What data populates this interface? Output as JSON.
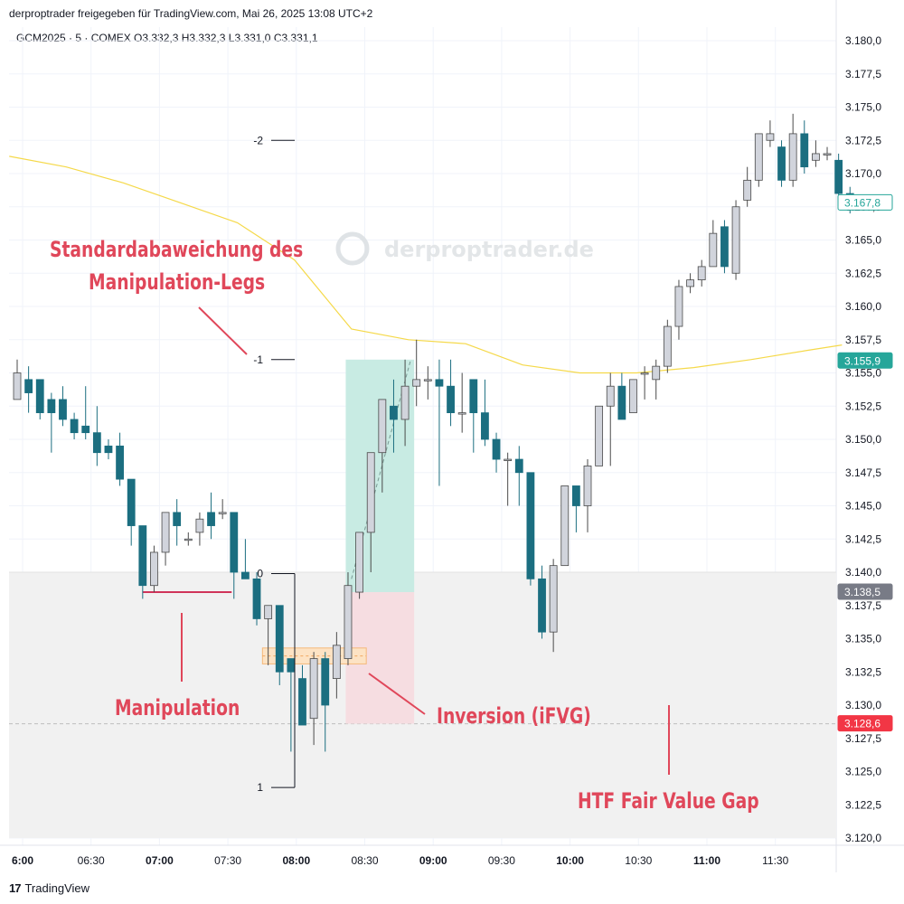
{
  "header": {
    "attribution": "derproptrader freigegeben für TradingView.com, Mai 26, 2025 13:08 UTC+2",
    "symbol_line": "GCM2025 · 5 · COMEX  O3.332,3  H3.332,3  L3.331,0  C3.331,1"
  },
  "footer": {
    "brand": "TradingView",
    "logo": "17"
  },
  "watermark": "derproptrader.de",
  "colors": {
    "bull": "#d1d4dc",
    "bear": "#1b6e80",
    "ma": "#f5d94a",
    "price_tag_teal": "#26a69a",
    "price_tag_gray": "#787b86",
    "price_tag_red": "#f23645",
    "annotation": "#e0475a",
    "long_target": "#c8ebe3",
    "long_stop": "#f6dde1"
  },
  "annotations": {
    "std_dev_line1": "Standardabaweichung des",
    "std_dev_line2": "Manipulation-Legs",
    "manipulation": "Manipulation",
    "inversion": "Inversion (iFVG)",
    "htf_fvg": "HTF Fair Value Gap"
  },
  "fib_levels": [
    "-2",
    "-1",
    "0",
    "1"
  ],
  "chart_data": {
    "type": "candlestick",
    "y_axis": {
      "min": 3120.0,
      "max": 3182.5,
      "ticks": [
        "3.180,0",
        "3.177,5",
        "3.175,0",
        "3.172,5",
        "3.170,0",
        "3.167,5",
        "3.165,0",
        "3.162,5",
        "3.160,0",
        "3.157,5",
        "3.155,0",
        "3.152,5",
        "3.150,0",
        "3.147,5",
        "3.145,0",
        "3.142,5",
        "3.140,0",
        "3.137,5",
        "3.135,0",
        "3.132,5",
        "3.130,0",
        "3.127,5",
        "3.125,0",
        "3.122,5",
        "3.120,0"
      ],
      "tick_values": [
        3180,
        3177.5,
        3175,
        3172.5,
        3170,
        3167.5,
        3165,
        3162.5,
        3160,
        3157.5,
        3155,
        3152.5,
        3150,
        3147.5,
        3145,
        3142.5,
        3140,
        3137.5,
        3135,
        3132.5,
        3130,
        3127.5,
        3125,
        3122.5,
        3120
      ]
    },
    "x_axis": {
      "ticks": [
        "6:00",
        "06:30",
        "07:00",
        "07:30",
        "08:00",
        "08:30",
        "09:00",
        "09:30",
        "10:00",
        "10:30",
        "11:00",
        "11:30"
      ],
      "bold": [
        "6:00",
        "07:00",
        "08:00",
        "09:00",
        "10:00",
        "11:00"
      ]
    },
    "price_tags": [
      {
        "label": "3.167,8",
        "value": 3167.8,
        "style": "outline-teal"
      },
      {
        "label": "3.155,9",
        "value": 3155.9,
        "style": "teal"
      },
      {
        "label": "3.138,5",
        "value": 3138.5,
        "style": "gray"
      },
      {
        "label": "3.128,6",
        "value": 3128.6,
        "style": "red"
      }
    ],
    "candles": [
      {
        "o": 3153.0,
        "h": 3156.0,
        "l": 3153.0,
        "c": 3155.0
      },
      {
        "o": 3154.5,
        "h": 3155.5,
        "l": 3152.0,
        "c": 3153.5
      },
      {
        "o": 3154.5,
        "h": 3154.5,
        "l": 3151.5,
        "c": 3152.0
      },
      {
        "o": 3153.0,
        "h": 3153.5,
        "l": 3149.0,
        "c": 3152.0
      },
      {
        "o": 3153.0,
        "h": 3154.0,
        "l": 3151.0,
        "c": 3151.5
      },
      {
        "o": 3151.5,
        "h": 3152.0,
        "l": 3150.0,
        "c": 3150.5
      },
      {
        "o": 3151.0,
        "h": 3154.0,
        "l": 3150.0,
        "c": 3150.5
      },
      {
        "o": 3150.5,
        "h": 3152.5,
        "l": 3148.0,
        "c": 3149.0
      },
      {
        "o": 3149.5,
        "h": 3150.0,
        "l": 3148.5,
        "c": 3149.0
      },
      {
        "o": 3149.5,
        "h": 3150.5,
        "l": 3146.5,
        "c": 3147.0
      },
      {
        "o": 3147.0,
        "h": 3147.0,
        "l": 3142.0,
        "c": 3143.5
      },
      {
        "o": 3143.5,
        "h": 3143.5,
        "l": 3138.0,
        "c": 3139.0
      },
      {
        "o": 3139.0,
        "h": 3142.0,
        "l": 3138.5,
        "c": 3141.5
      },
      {
        "o": 3141.5,
        "h": 3144.5,
        "l": 3140.5,
        "c": 3144.5
      },
      {
        "o": 3144.5,
        "h": 3145.5,
        "l": 3142.0,
        "c": 3143.5
      },
      {
        "o": 3142.5,
        "h": 3143.0,
        "l": 3142.0,
        "c": 3142.5
      },
      {
        "o": 3143.0,
        "h": 3144.5,
        "l": 3142.0,
        "c": 3144.0
      },
      {
        "o": 3144.5,
        "h": 3146.0,
        "l": 3142.5,
        "c": 3143.5
      },
      {
        "o": 3144.5,
        "h": 3145.5,
        "l": 3144.0,
        "c": 3144.5
      },
      {
        "o": 3144.5,
        "h": 3144.5,
        "l": 3138.0,
        "c": 3140.0
      },
      {
        "o": 3140.0,
        "h": 3142.5,
        "l": 3139.5,
        "c": 3139.5
      },
      {
        "o": 3139.5,
        "h": 3140.0,
        "l": 3136.0,
        "c": 3136.5
      },
      {
        "o": 3136.5,
        "h": 3137.5,
        "l": 3133.0,
        "c": 3137.5
      },
      {
        "o": 3137.5,
        "h": 3137.5,
        "l": 3131.5,
        "c": 3132.5
      },
      {
        "o": 3133.5,
        "h": 3133.5,
        "l": 3126.5,
        "c": 3132.5
      },
      {
        "o": 3132.0,
        "h": 3133.0,
        "l": 3128.5,
        "c": 3128.5
      },
      {
        "o": 3129.0,
        "h": 3134.0,
        "l": 3127.0,
        "c": 3133.5
      },
      {
        "o": 3133.5,
        "h": 3134.0,
        "l": 3126.5,
        "c": 3130.0
      },
      {
        "o": 3132.0,
        "h": 3135.5,
        "l": 3130.5,
        "c": 3134.5
      },
      {
        "o": 3133.5,
        "h": 3140.0,
        "l": 3133.0,
        "c": 3139.0
      },
      {
        "o": 3138.5,
        "h": 3143.0,
        "l": 3138.0,
        "c": 3143.0
      },
      {
        "o": 3143.0,
        "h": 3149.0,
        "l": 3140.0,
        "c": 3149.0
      },
      {
        "o": 3149.0,
        "h": 3153.0,
        "l": 3146.0,
        "c": 3153.0
      },
      {
        "o": 3152.5,
        "h": 3154.5,
        "l": 3149.0,
        "c": 3151.5
      },
      {
        "o": 3151.5,
        "h": 3156.0,
        "l": 3149.5,
        "c": 3154.0
      },
      {
        "o": 3154.0,
        "h": 3157.5,
        "l": 3152.5,
        "c": 3154.5
      },
      {
        "o": 3154.5,
        "h": 3155.5,
        "l": 3153.0,
        "c": 3154.5
      },
      {
        "o": 3154.5,
        "h": 3156.0,
        "l": 3146.5,
        "c": 3154.0
      },
      {
        "o": 3154.0,
        "h": 3156.0,
        "l": 3151.0,
        "c": 3152.0
      },
      {
        "o": 3152.0,
        "h": 3155.0,
        "l": 3150.5,
        "c": 3152.0
      },
      {
        "o": 3154.5,
        "h": 3154.5,
        "l": 3149.0,
        "c": 3152.0
      },
      {
        "o": 3152.0,
        "h": 3154.5,
        "l": 3149.5,
        "c": 3150.0
      },
      {
        "o": 3150.0,
        "h": 3150.5,
        "l": 3147.5,
        "c": 3148.5
      },
      {
        "o": 3148.5,
        "h": 3149.0,
        "l": 3145.0,
        "c": 3148.5
      },
      {
        "o": 3148.5,
        "h": 3149.5,
        "l": 3145.0,
        "c": 3147.5
      },
      {
        "o": 3147.5,
        "h": 3147.5,
        "l": 3139.0,
        "c": 3139.5
      },
      {
        "o": 3139.5,
        "h": 3140.5,
        "l": 3135.0,
        "c": 3135.5
      },
      {
        "o": 3135.5,
        "h": 3141.0,
        "l": 3134.0,
        "c": 3140.5
      },
      {
        "o": 3140.5,
        "h": 3146.5,
        "l": 3140.5,
        "c": 3146.5
      },
      {
        "o": 3146.5,
        "h": 3146.5,
        "l": 3143.0,
        "c": 3145.0
      },
      {
        "o": 3145.0,
        "h": 3148.5,
        "l": 3143.0,
        "c": 3148.0
      },
      {
        "o": 3148.0,
        "h": 3152.5,
        "l": 3148.0,
        "c": 3152.5
      },
      {
        "o": 3152.5,
        "h": 3155.0,
        "l": 3148.0,
        "c": 3154.0
      },
      {
        "o": 3154.0,
        "h": 3155.0,
        "l": 3151.5,
        "c": 3151.5
      },
      {
        "o": 3152.0,
        "h": 3154.5,
        "l": 3152.0,
        "c": 3154.5
      },
      {
        "o": 3155.0,
        "h": 3155.5,
        "l": 3153.0,
        "c": 3155.0
      },
      {
        "o": 3154.5,
        "h": 3156.0,
        "l": 3153.0,
        "c": 3155.5
      },
      {
        "o": 3155.5,
        "h": 3159.0,
        "l": 3155.0,
        "c": 3158.5
      },
      {
        "o": 3158.5,
        "h": 3162.0,
        "l": 3157.5,
        "c": 3161.5
      },
      {
        "o": 3161.5,
        "h": 3162.5,
        "l": 3161.0,
        "c": 3162.0
      },
      {
        "o": 3162.0,
        "h": 3163.5,
        "l": 3161.5,
        "c": 3163.0
      },
      {
        "o": 3163.0,
        "h": 3166.5,
        "l": 3163.0,
        "c": 3165.5
      },
      {
        "o": 3166.0,
        "h": 3166.5,
        "l": 3162.5,
        "c": 3163.0
      },
      {
        "o": 3162.5,
        "h": 3168.0,
        "l": 3162.0,
        "c": 3167.5
      },
      {
        "o": 3168.0,
        "h": 3170.5,
        "l": 3167.5,
        "c": 3169.5
      },
      {
        "o": 3169.5,
        "h": 3173.0,
        "l": 3169.0,
        "c": 3173.0
      },
      {
        "o": 3172.5,
        "h": 3174.0,
        "l": 3172.0,
        "c": 3173.0
      },
      {
        "o": 3172.0,
        "h": 3172.5,
        "l": 3169.0,
        "c": 3169.5
      },
      {
        "o": 3169.5,
        "h": 3174.5,
        "l": 3169.0,
        "c": 3173.0
      },
      {
        "o": 3173.0,
        "h": 3174.0,
        "l": 3170.0,
        "c": 3170.5
      },
      {
        "o": 3171.0,
        "h": 3172.5,
        "l": 3170.5,
        "c": 3171.5
      },
      {
        "o": 3171.5,
        "h": 3172.0,
        "l": 3171.0,
        "c": 3171.5
      },
      {
        "o": 3171.0,
        "h": 3171.5,
        "l": 3168.0,
        "c": 3168.5
      },
      {
        "o": 3168.5,
        "h": 3169.0,
        "l": 3167.0,
        "c": 3167.8
      }
    ],
    "moving_average": [
      {
        "i": 0,
        "v": 3171.3
      },
      {
        "i": 5,
        "v": 3170.5
      },
      {
        "i": 10,
        "v": 3169.3
      },
      {
        "i": 15,
        "v": 3167.8
      },
      {
        "i": 20,
        "v": 3166.3
      },
      {
        "i": 25,
        "v": 3163.5
      },
      {
        "i": 30,
        "v": 3158.3
      },
      {
        "i": 35,
        "v": 3157.5
      },
      {
        "i": 40,
        "v": 3157.2
      },
      {
        "i": 45,
        "v": 3155.6
      },
      {
        "i": 50,
        "v": 3155.0
      },
      {
        "i": 55,
        "v": 3155.0
      },
      {
        "i": 60,
        "v": 3155.4
      },
      {
        "i": 65,
        "v": 3156.0
      },
      {
        "i": 70,
        "v": 3156.7
      },
      {
        "i": 73,
        "v": 3157.1
      }
    ],
    "fib_prices": [
      3172.5,
      3156.0,
      3139.9,
      3123.8
    ],
    "zones": {
      "htf_fvg": {
        "top": 3140.0,
        "bottom": 3120.0
      },
      "long_target": {
        "top": 3156.0,
        "bottom": 3138.5
      },
      "long_stop": {
        "top": 3138.5,
        "bottom": 3128.6
      },
      "ifvg": {
        "top": 3134.3,
        "bottom": 3133.1
      },
      "manipulation_line": 3138.5
    }
  }
}
